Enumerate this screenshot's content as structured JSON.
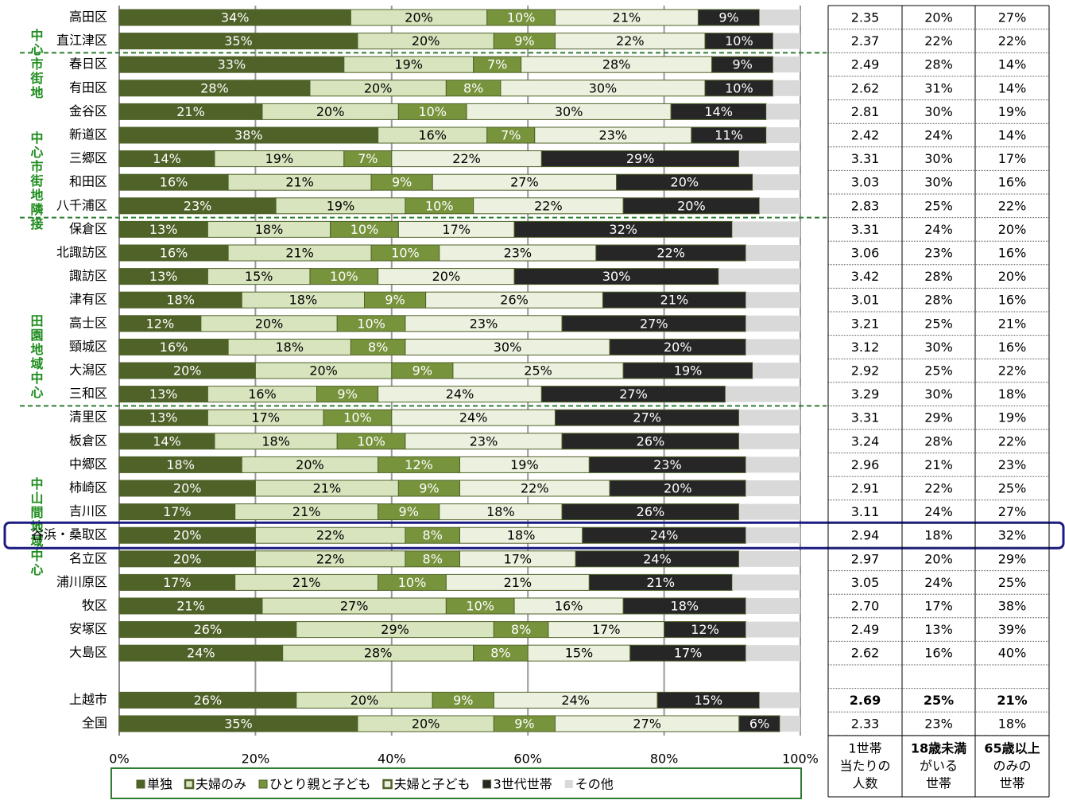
{
  "chart_data": {
    "type": "stacked-bar-horizontal",
    "categories": [
      "高田区",
      "直江津区",
      "春日区",
      "有田区",
      "金谷区",
      "新道区",
      "三郷区",
      "和田区",
      "八千浦区",
      "保倉区",
      "北諏訪区",
      "諏訪区",
      "津有区",
      "高士区",
      "頸城区",
      "大潟区",
      "三和区",
      "清里区",
      "板倉区",
      "中郷区",
      "柿崎区",
      "吉川区",
      "谷浜・桑取区",
      "名立区",
      "浦川原区",
      "牧区",
      "安塚区",
      "大島区",
      null,
      "上越市",
      "全国"
    ],
    "groups": [
      "中心市街地",
      "中心市街地隣接",
      "田園地域中心",
      "中山間地域中心"
    ],
    "series": [
      {
        "name": "単独",
        "color": "#4f6228",
        "label_color": "#ffffff",
        "values": [
          34,
          35,
          33,
          28,
          21,
          38,
          14,
          16,
          23,
          13,
          16,
          13,
          18,
          12,
          16,
          20,
          13,
          13,
          14,
          18,
          20,
          17,
          20,
          20,
          17,
          21,
          26,
          24,
          null,
          26,
          35
        ],
        "value_labels": [
          "34%",
          "35%",
          "33%",
          "28%",
          "21%",
          "38%",
          "14%",
          "16%",
          "23%",
          "13%",
          "16%",
          "13%",
          "18%",
          "12%",
          "16%",
          "20%",
          "13%",
          "13%",
          "14%",
          "18%",
          "20%",
          "17%",
          "20%",
          "20%",
          "17%",
          "21%",
          "26%",
          "24%",
          null,
          "26%",
          "35%"
        ]
      },
      {
        "name": "夫婦のみ",
        "color": "#d7e4bd",
        "label_color": "#000000",
        "values": [
          20,
          20,
          19,
          20,
          20,
          16,
          19,
          21,
          19,
          18,
          21,
          15,
          18,
          20,
          18,
          20,
          16,
          17,
          18,
          20,
          21,
          21,
          22,
          22,
          21,
          27,
          29,
          28,
          null,
          20,
          20
        ],
        "value_labels": [
          "20%",
          "20%",
          "19%",
          "20%",
          "20%",
          "16%",
          "19%",
          "21%",
          "19%",
          "18%",
          "21%",
          "15%",
          "18%",
          "20%",
          "18%",
          "20%",
          "16%",
          "17%",
          "18%",
          "20%",
          "21%",
          "21%",
          "22%",
          "22%",
          "21%",
          "27%",
          "29%",
          "28%",
          null,
          "20%",
          "20%"
        ]
      },
      {
        "name": "ひとり親と子ども",
        "color": "#77933c",
        "label_color": "#ffffff",
        "values": [
          10,
          9,
          7,
          8,
          10,
          7,
          7,
          9,
          10,
          10,
          10,
          10,
          9,
          10,
          8,
          9,
          9,
          10,
          10,
          12,
          9,
          9,
          8,
          8,
          10,
          10,
          8,
          8,
          null,
          9,
          9
        ],
        "value_labels": [
          "10%",
          "9%",
          "7%",
          "8%",
          "10%",
          "7%",
          "7%",
          "9%",
          "10%",
          "10%",
          "10%",
          "10%",
          "9%",
          "10%",
          "8%",
          "9%",
          "9%",
          "10%",
          "10%",
          "12%",
          "9%",
          "9%",
          "8%",
          "8%",
          "10%",
          "10%",
          "8%",
          "8%",
          null,
          "9%",
          "9%"
        ]
      },
      {
        "name": "夫婦と子ども",
        "color": "#ebf1de",
        "label_color": "#000000",
        "values": [
          21,
          22,
          28,
          30,
          30,
          23,
          22,
          27,
          22,
          17,
          23,
          20,
          26,
          23,
          30,
          25,
          24,
          24,
          23,
          19,
          22,
          18,
          18,
          17,
          21,
          16,
          17,
          15,
          null,
          24,
          27
        ],
        "value_labels": [
          "21%",
          "22%",
          "28%",
          "30%",
          "30%",
          "23%",
          "22%",
          "27%",
          "22%",
          "17%",
          "23%",
          "20%",
          "26%",
          "23%",
          "30%",
          "25%",
          "24%",
          "24%",
          "23%",
          "19%",
          "22%",
          "18%",
          "18%",
          "17%",
          "21%",
          "16%",
          "17%",
          "15%",
          null,
          "24%",
          "27%"
        ]
      },
      {
        "name": "3世代世帯",
        "color": "#262626",
        "label_color": "#ffffff",
        "values": [
          9,
          10,
          9,
          10,
          14,
          11,
          29,
          20,
          20,
          32,
          22,
          30,
          21,
          27,
          20,
          19,
          27,
          27,
          26,
          23,
          20,
          26,
          24,
          24,
          21,
          18,
          12,
          17,
          null,
          15,
          6
        ],
        "value_labels": [
          "9%",
          "10%",
          "9%",
          "10%",
          "14%",
          "11%",
          "29%",
          "20%",
          "20%",
          "32%",
          "22%",
          "30%",
          "21%",
          "27%",
          "20%",
          "19%",
          "27%",
          "27%",
          "26%",
          "23%",
          "20%",
          "26%",
          "24%",
          "24%",
          "21%",
          "18%",
          "12%",
          "17%",
          null,
          "15%",
          "6%"
        ]
      },
      {
        "name": "その他",
        "color": "#d9d9d9",
        "values": [
          6,
          4,
          4,
          4,
          5,
          5,
          9,
          7,
          6,
          10,
          8,
          12,
          8,
          8,
          8,
          7,
          11,
          9,
          9,
          8,
          8,
          9,
          8,
          9,
          10,
          8,
          8,
          8,
          null,
          6,
          3
        ]
      }
    ],
    "xlim": [
      0,
      100
    ],
    "xticks": [
      {
        "value": 0,
        "label": "0%"
      },
      {
        "value": 20,
        "label": "20%"
      },
      {
        "value": 40,
        "label": "40%"
      },
      {
        "value": 60,
        "label": "60%"
      },
      {
        "value": 80,
        "label": "80%"
      },
      {
        "value": 100,
        "label": "100%"
      }
    ],
    "grid": true
  },
  "table": {
    "headers": [
      [
        "1世帯",
        "当たりの",
        "人数"
      ],
      [
        "18歳未満",
        "がいる",
        "世帯"
      ],
      [
        "65歳以上",
        "のみの",
        "世帯"
      ]
    ],
    "rows": [
      [
        "2.35",
        "20%",
        "27%"
      ],
      [
        "2.37",
        "22%",
        "22%"
      ],
      [
        "2.49",
        "28%",
        "14%"
      ],
      [
        "2.62",
        "31%",
        "14%"
      ],
      [
        "2.81",
        "30%",
        "19%"
      ],
      [
        "2.42",
        "24%",
        "14%"
      ],
      [
        "3.31",
        "30%",
        "17%"
      ],
      [
        "3.03",
        "30%",
        "16%"
      ],
      [
        "2.83",
        "25%",
        "22%"
      ],
      [
        "3.31",
        "24%",
        "20%"
      ],
      [
        "3.06",
        "23%",
        "16%"
      ],
      [
        "3.42",
        "28%",
        "20%"
      ],
      [
        "3.01",
        "28%",
        "16%"
      ],
      [
        "3.21",
        "25%",
        "21%"
      ],
      [
        "3.12",
        "30%",
        "16%"
      ],
      [
        "2.92",
        "25%",
        "22%"
      ],
      [
        "3.29",
        "30%",
        "18%"
      ],
      [
        "3.31",
        "29%",
        "19%"
      ],
      [
        "3.24",
        "28%",
        "22%"
      ],
      [
        "2.96",
        "21%",
        "23%"
      ],
      [
        "2.91",
        "22%",
        "25%"
      ],
      [
        "3.11",
        "24%",
        "27%"
      ],
      [
        "2.94",
        "18%",
        "32%"
      ],
      [
        "2.97",
        "20%",
        "29%"
      ],
      [
        "3.05",
        "24%",
        "25%"
      ],
      [
        "2.70",
        "17%",
        "38%"
      ],
      [
        "2.49",
        "13%",
        "39%"
      ],
      [
        "2.62",
        "16%",
        "40%"
      ],
      null,
      [
        "2.69",
        "25%",
        "21%"
      ],
      [
        "2.33",
        "23%",
        "18%"
      ]
    ]
  }
}
